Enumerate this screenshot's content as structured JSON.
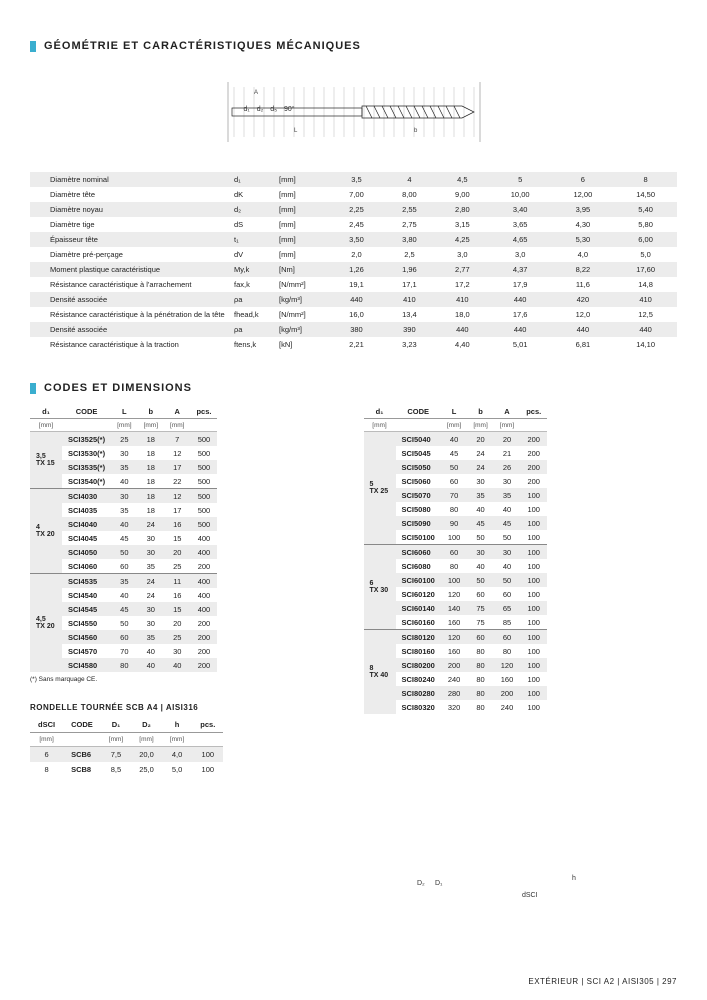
{
  "section1_title": "GÉOMÉTRIE ET CARACTÉRISTIQUES MÉCANIQUES",
  "diagram_labels": [
    "d₁",
    "d₂",
    "d₅",
    "90°"
  ],
  "geom": {
    "cols_d1": [
      "3,5",
      "4",
      "4,5",
      "5",
      "6",
      "8"
    ],
    "rows": [
      {
        "label": "Diamètre nominal",
        "sym": "d₁",
        "unit": "[mm]",
        "vals": [
          "3,5",
          "4",
          "4,5",
          "5",
          "6",
          "8"
        ]
      },
      {
        "label": "Diamètre tête",
        "sym": "dK",
        "unit": "[mm]",
        "vals": [
          "7,00",
          "8,00",
          "9,00",
          "10,00",
          "12,00",
          "14,50"
        ]
      },
      {
        "label": "Diamètre noyau",
        "sym": "d₂",
        "unit": "[mm]",
        "vals": [
          "2,25",
          "2,55",
          "2,80",
          "3,40",
          "3,95",
          "5,40"
        ]
      },
      {
        "label": "Diamètre tige",
        "sym": "dS",
        "unit": "[mm]",
        "vals": [
          "2,45",
          "2,75",
          "3,15",
          "3,65",
          "4,30",
          "5,80"
        ]
      },
      {
        "label": "Épaisseur tête",
        "sym": "t₁",
        "unit": "[mm]",
        "vals": [
          "3,50",
          "3,80",
          "4,25",
          "4,65",
          "5,30",
          "6,00"
        ]
      },
      {
        "label": "Diamètre pré-perçage",
        "sym": "dV",
        "unit": "[mm]",
        "vals": [
          "2,0",
          "2,5",
          "3,0",
          "3,0",
          "4,0",
          "5,0"
        ]
      },
      {
        "label": "Moment plastique caractéristique",
        "sym": "My,k",
        "unit": "[Nm]",
        "vals": [
          "1,26",
          "1,96",
          "2,77",
          "4,37",
          "8,22",
          "17,60"
        ]
      },
      {
        "label": "Résistance caractéristique à l'arrachement",
        "sym": "fax,k",
        "unit": "[N/mm²]",
        "vals": [
          "19,1",
          "17,1",
          "17,2",
          "17,9",
          "11,6",
          "14,8"
        ]
      },
      {
        "label": "Densité associée",
        "sym": "ρa",
        "unit": "[kg/m³]",
        "vals": [
          "440",
          "410",
          "410",
          "440",
          "420",
          "410"
        ]
      },
      {
        "label": "Résistance caractéristique à la pénétration de la tête",
        "sym": "fhead,k",
        "unit": "[N/mm²]",
        "vals": [
          "16,0",
          "13,4",
          "18,0",
          "17,6",
          "12,0",
          "12,5"
        ]
      },
      {
        "label": "Densité associée",
        "sym": "ρa",
        "unit": "[kg/m³]",
        "vals": [
          "380",
          "390",
          "440",
          "440",
          "440",
          "440"
        ]
      },
      {
        "label": "Résistance caractéristique à la traction",
        "sym": "ftens,k",
        "unit": "[kN]",
        "vals": [
          "2,21",
          "3,23",
          "4,40",
          "5,01",
          "6,81",
          "14,10"
        ]
      }
    ]
  },
  "section2_title": "CODES ET DIMENSIONS",
  "code_headers": {
    "d1": "d₁",
    "code": "CODE",
    "L": "L",
    "b": "b",
    "A": "A",
    "pcs": "pcs."
  },
  "code_units": {
    "d1": "[mm]",
    "L": "[mm]",
    "b": "[mm]",
    "A": "[mm]"
  },
  "left_groups": [
    {
      "lab": "3,5\nTX 15",
      "rows": [
        {
          "c": "SCI3525(*)",
          "L": "25",
          "b": "18",
          "A": "7",
          "p": "500"
        },
        {
          "c": "SCI3530(*)",
          "L": "30",
          "b": "18",
          "A": "12",
          "p": "500"
        },
        {
          "c": "SCI3535(*)",
          "L": "35",
          "b": "18",
          "A": "17",
          "p": "500"
        },
        {
          "c": "SCI3540(*)",
          "L": "40",
          "b": "18",
          "A": "22",
          "p": "500"
        }
      ]
    },
    {
      "lab": "4\nTX 20",
      "rows": [
        {
          "c": "SCI4030",
          "L": "30",
          "b": "18",
          "A": "12",
          "p": "500"
        },
        {
          "c": "SCI4035",
          "L": "35",
          "b": "18",
          "A": "17",
          "p": "500"
        },
        {
          "c": "SCI4040",
          "L": "40",
          "b": "24",
          "A": "16",
          "p": "500"
        },
        {
          "c": "SCI4045",
          "L": "45",
          "b": "30",
          "A": "15",
          "p": "400"
        },
        {
          "c": "SCI4050",
          "L": "50",
          "b": "30",
          "A": "20",
          "p": "400"
        },
        {
          "c": "SCI4060",
          "L": "60",
          "b": "35",
          "A": "25",
          "p": "200"
        }
      ]
    },
    {
      "lab": "4,5\nTX 20",
      "rows": [
        {
          "c": "SCI4535",
          "L": "35",
          "b": "24",
          "A": "11",
          "p": "400"
        },
        {
          "c": "SCI4540",
          "L": "40",
          "b": "24",
          "A": "16",
          "p": "400"
        },
        {
          "c": "SCI4545",
          "L": "45",
          "b": "30",
          "A": "15",
          "p": "400"
        },
        {
          "c": "SCI4550",
          "L": "50",
          "b": "30",
          "A": "20",
          "p": "200"
        },
        {
          "c": "SCI4560",
          "L": "60",
          "b": "35",
          "A": "25",
          "p": "200"
        },
        {
          "c": "SCI4570",
          "L": "70",
          "b": "40",
          "A": "30",
          "p": "200"
        },
        {
          "c": "SCI4580",
          "L": "80",
          "b": "40",
          "A": "40",
          "p": "200"
        }
      ]
    }
  ],
  "right_groups": [
    {
      "lab": "5\nTX 25",
      "rows": [
        {
          "c": "SCI5040",
          "L": "40",
          "b": "20",
          "A": "20",
          "p": "200"
        },
        {
          "c": "SCI5045",
          "L": "45",
          "b": "24",
          "A": "21",
          "p": "200"
        },
        {
          "c": "SCI5050",
          "L": "50",
          "b": "24",
          "A": "26",
          "p": "200"
        },
        {
          "c": "SCI5060",
          "L": "60",
          "b": "30",
          "A": "30",
          "p": "200"
        },
        {
          "c": "SCI5070",
          "L": "70",
          "b": "35",
          "A": "35",
          "p": "100"
        },
        {
          "c": "SCI5080",
          "L": "80",
          "b": "40",
          "A": "40",
          "p": "100"
        },
        {
          "c": "SCI5090",
          "L": "90",
          "b": "45",
          "A": "45",
          "p": "100"
        },
        {
          "c": "SCI50100",
          "L": "100",
          "b": "50",
          "A": "50",
          "p": "100"
        }
      ]
    },
    {
      "lab": "6\nTX 30",
      "rows": [
        {
          "c": "SCI6060",
          "L": "60",
          "b": "30",
          "A": "30",
          "p": "100"
        },
        {
          "c": "SCI6080",
          "L": "80",
          "b": "40",
          "A": "40",
          "p": "100"
        },
        {
          "c": "SCI60100",
          "L": "100",
          "b": "50",
          "A": "50",
          "p": "100"
        },
        {
          "c": "SCI60120",
          "L": "120",
          "b": "60",
          "A": "60",
          "p": "100"
        },
        {
          "c": "SCI60140",
          "L": "140",
          "b": "75",
          "A": "65",
          "p": "100"
        },
        {
          "c": "SCI60160",
          "L": "160",
          "b": "75",
          "A": "85",
          "p": "100"
        }
      ]
    },
    {
      "lab": "8\nTX 40",
      "rows": [
        {
          "c": "SCI80120",
          "L": "120",
          "b": "60",
          "A": "60",
          "p": "100"
        },
        {
          "c": "SCI80160",
          "L": "160",
          "b": "80",
          "A": "80",
          "p": "100"
        },
        {
          "c": "SCI80200",
          "L": "200",
          "b": "80",
          "A": "120",
          "p": "100"
        },
        {
          "c": "SCI80240",
          "L": "240",
          "b": "80",
          "A": "160",
          "p": "100"
        },
        {
          "c": "SCI80280",
          "L": "280",
          "b": "80",
          "A": "200",
          "p": "100"
        },
        {
          "c": "SCI80320",
          "L": "320",
          "b": "80",
          "A": "240",
          "p": "100"
        }
      ]
    }
  ],
  "footnote": "(*) Sans marquage CE.",
  "rondelle_title": "RONDELLE TOURNÉE SCB A4 | AISI316",
  "rondelle_headers": {
    "d": "dSCI",
    "code": "CODE",
    "D1": "D₁",
    "D2": "D₂",
    "h": "h",
    "pcs": "pcs."
  },
  "rondelle_units": {
    "d": "[mm]",
    "D1": "[mm]",
    "D2": "[mm]",
    "h": "[mm]"
  },
  "rondelle_rows": [
    {
      "d": "6",
      "c": "SCB6",
      "D1": "7,5",
      "D2": "20,0",
      "h": "4,0",
      "p": "100"
    },
    {
      "d": "8",
      "c": "SCB8",
      "D1": "8,5",
      "D2": "25,0",
      "h": "5,0",
      "p": "100"
    }
  ],
  "rondelle_diag": {
    "D2": "D₂",
    "D1": "D₁",
    "h": "h",
    "d": "dSCI"
  },
  "footer": "EXTÉRIEUR  |  SCI A2 | AISI305  |  297"
}
